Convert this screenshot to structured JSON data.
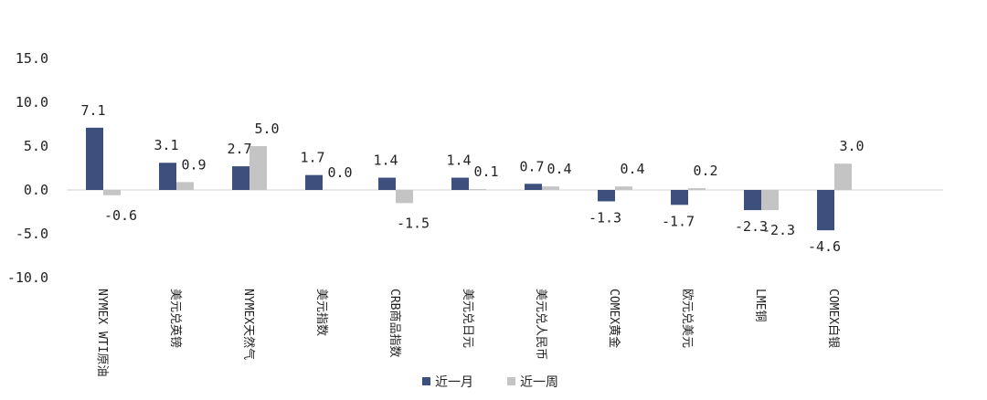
{
  "chart_data": {
    "type": "bar",
    "categories": [
      "NYMEX WTI原油",
      "美元兑英镑",
      "NYMEX天然气",
      "美元指数",
      "CRB商品指数",
      "美元兑日元",
      "美元兑人民币",
      "COMEX黄金",
      "欧元兑美元",
      "LME铜",
      "COMEX白银"
    ],
    "series": [
      {
        "name": "近一月",
        "color": "#3d4f7d",
        "values": [
          7.1,
          3.1,
          2.7,
          1.7,
          1.4,
          1.4,
          0.7,
          -1.3,
          -1.7,
          -2.3,
          -4.6
        ],
        "labels": [
          "7.1",
          "3.1",
          "2.7",
          "1.7",
          "1.4",
          "1.4",
          "0.7",
          "-1.3",
          "-1.7",
          "-2.3",
          "-4.6"
        ]
      },
      {
        "name": "近一周",
        "color": "#c4c4c4",
        "values": [
          -0.6,
          0.9,
          5.0,
          0.0,
          -1.5,
          0.1,
          0.4,
          0.4,
          0.2,
          -2.3,
          3.0
        ],
        "labels": [
          "-0.6",
          "0.9",
          "5.0",
          "0.0",
          "-1.5",
          "0.1",
          "0.4",
          "0.4",
          "0.2",
          "-2.3",
          "3.0"
        ]
      }
    ],
    "yticks": [
      "15.0",
      "10.0",
      "5.0",
      "0.0",
      "-5.0",
      "-10.0"
    ],
    "ylim": [
      -10,
      15
    ],
    "legend_position": "bottom",
    "grid": false
  }
}
